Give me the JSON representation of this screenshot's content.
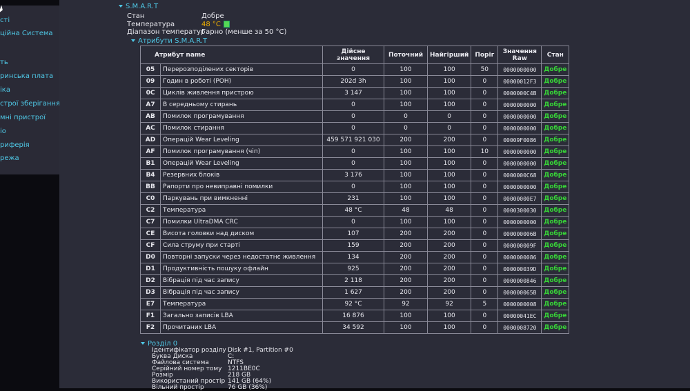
{
  "sidebar": {
    "items": [
      {
        "label": "сті"
      },
      {
        "label": "ційна Система"
      },
      {
        "label": "ть"
      },
      {
        "label": "ринська плата"
      },
      {
        "label": "іка"
      },
      {
        "label": "строї зберігання"
      },
      {
        "label": "мні пристрої"
      },
      {
        "label": "іо"
      },
      {
        "label": "риферія"
      },
      {
        "label": "режа"
      }
    ]
  },
  "smart": {
    "title": "S.M.A.R.T",
    "status_label": "Стан",
    "status_value": "Добре",
    "temp_label": "Температура",
    "temp_value": "48 °C",
    "range_label": "Діапазон температур",
    "range_value": "Гарно (менше за 50 °C)",
    "attributes_title": "Атрибути S.M.A.R.T",
    "columns": [
      "Атрибут name",
      "Дійсне значення",
      "Поточний",
      "Найгірший",
      "Поріг",
      "Значення Raw",
      "Стан"
    ],
    "rows": [
      {
        "id": "05",
        "name": "Перерозподілених секторів",
        "actual": "0",
        "current": "100",
        "worst": "100",
        "threshold": "50",
        "raw": "0000000000",
        "status": "Добре"
      },
      {
        "id": "09",
        "name": "Годин в роботі (POH)",
        "actual": "202d 3h",
        "current": "100",
        "worst": "100",
        "threshold": "0",
        "raw": "00000012F3",
        "status": "Добре"
      },
      {
        "id": "0C",
        "name": "Циклів живлення пристрою",
        "actual": "3 147",
        "current": "100",
        "worst": "100",
        "threshold": "0",
        "raw": "0000000C4B",
        "status": "Добре"
      },
      {
        "id": "A7",
        "name": "В середньому стирань",
        "actual": "0",
        "current": "100",
        "worst": "100",
        "threshold": "0",
        "raw": "0000000000",
        "status": "Добре"
      },
      {
        "id": "AB",
        "name": "Помилок програмування",
        "actual": "0",
        "current": "0",
        "worst": "0",
        "threshold": "0",
        "raw": "0000000000",
        "status": "Добре"
      },
      {
        "id": "AC",
        "name": "Помилок стирання",
        "actual": "0",
        "current": "0",
        "worst": "0",
        "threshold": "0",
        "raw": "0000000000",
        "status": "Добре"
      },
      {
        "id": "AD",
        "name": "Операцій Wear Leveling",
        "actual": "459 571 921 030",
        "current": "200",
        "worst": "200",
        "threshold": "0",
        "raw": "00009F0086",
        "status": "Добре"
      },
      {
        "id": "AF",
        "name": "Помилок програмування (чіп)",
        "actual": "0",
        "current": "100",
        "worst": "100",
        "threshold": "10",
        "raw": "0000000000",
        "status": "Добре"
      },
      {
        "id": "B1",
        "name": "Операцій Wear Leveling",
        "actual": "0",
        "current": "100",
        "worst": "100",
        "threshold": "0",
        "raw": "0000000000",
        "status": "Добре"
      },
      {
        "id": "B4",
        "name": "Резервних блоків",
        "actual": "3 176",
        "current": "100",
        "worst": "100",
        "threshold": "0",
        "raw": "0000000C68",
        "status": "Добре"
      },
      {
        "id": "BB",
        "name": "Рапорти про невиправні помилки",
        "actual": "0",
        "current": "100",
        "worst": "100",
        "threshold": "0",
        "raw": "0000000000",
        "status": "Добре"
      },
      {
        "id": "C0",
        "name": "Паркувань при вимкненні",
        "actual": "231",
        "current": "100",
        "worst": "100",
        "threshold": "0",
        "raw": "00000000E7",
        "status": "Добре"
      },
      {
        "id": "C2",
        "name": "Температура",
        "actual": "48 °C",
        "current": "48",
        "worst": "48",
        "threshold": "0",
        "raw": "0000300030",
        "status": "Добре"
      },
      {
        "id": "C7",
        "name": "Помилки UltraDMA CRC",
        "actual": "0",
        "current": "100",
        "worst": "100",
        "threshold": "0",
        "raw": "0000000000",
        "status": "Добре"
      },
      {
        "id": "CE",
        "name": "Висота головки над диском",
        "actual": "107",
        "current": "200",
        "worst": "200",
        "threshold": "0",
        "raw": "000000006B",
        "status": "Добре"
      },
      {
        "id": "CF",
        "name": "Сила струму при старті",
        "actual": "159",
        "current": "200",
        "worst": "200",
        "threshold": "0",
        "raw": "000000009F",
        "status": "Добре"
      },
      {
        "id": "D0",
        "name": "Повторні запуски через недостатнє живлення",
        "actual": "134",
        "current": "200",
        "worst": "200",
        "threshold": "0",
        "raw": "0000000086",
        "status": "Добре"
      },
      {
        "id": "D1",
        "name": "Продуктивність пошуку офлайн",
        "actual": "925",
        "current": "200",
        "worst": "200",
        "threshold": "0",
        "raw": "000000039D",
        "status": "Добре"
      },
      {
        "id": "D2",
        "name": "Вібрація під час запису",
        "actual": "2 118",
        "current": "200",
        "worst": "200",
        "threshold": "0",
        "raw": "0000000846",
        "status": "Добре"
      },
      {
        "id": "D3",
        "name": "Вібрація під час запису",
        "actual": "1 627",
        "current": "200",
        "worst": "200",
        "threshold": "0",
        "raw": "000000065B",
        "status": "Добре"
      },
      {
        "id": "E7",
        "name": "Температура",
        "actual": "92 °C",
        "current": "92",
        "worst": "92",
        "threshold": "5",
        "raw": "0000000008",
        "status": "Добре"
      },
      {
        "id": "F1",
        "name": "Загально записів LBA",
        "actual": "16 876",
        "current": "100",
        "worst": "100",
        "threshold": "0",
        "raw": "00000041EC",
        "status": "Добре"
      },
      {
        "id": "F2",
        "name": "Прочитаних LBA",
        "actual": "34 592",
        "current": "100",
        "worst": "100",
        "threshold": "0",
        "raw": "0000008720",
        "status": "Добре"
      }
    ]
  },
  "partition": {
    "title": "Розділ 0",
    "fields": [
      {
        "label": "Ідентифікатор розділу",
        "value": "Disk #1, Partition #0"
      },
      {
        "label": "Буква Диска",
        "value": "C:"
      },
      {
        "label": "Файлова система",
        "value": "NTFS"
      },
      {
        "label": "Серійний номер тому",
        "value": "1211BE0C"
      },
      {
        "label": "Розмір",
        "value": "218 GB"
      },
      {
        "label": "Використаний простір",
        "value": "141 GB (64%)"
      },
      {
        "label": "Вільний простір",
        "value": "76 GB (36%)"
      }
    ]
  }
}
